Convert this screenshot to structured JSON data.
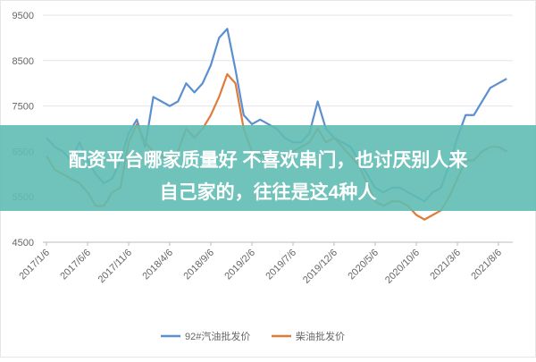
{
  "chart_data": {
    "type": "line",
    "categories": [
      "2017/1/6",
      null,
      null,
      null,
      null,
      "2017/6/6",
      null,
      null,
      null,
      null,
      "2017/11/6",
      null,
      null,
      null,
      null,
      "2018/4/6",
      null,
      null,
      null,
      null,
      "2018/9/6",
      null,
      null,
      null,
      null,
      "2019/2/6",
      null,
      null,
      null,
      null,
      "2019/7/6",
      null,
      null,
      null,
      null,
      "2019/12/6",
      null,
      null,
      null,
      null,
      "2020/5/6",
      null,
      null,
      null,
      null,
      "2020/10/6",
      null,
      null,
      null,
      null,
      "2021/3/6",
      null,
      null,
      null,
      null,
      "2021/8/6",
      null
    ],
    "series": [
      {
        "name": "92#汽油批发价",
        "color": "#5b8fd0",
        "values": [
          6800,
          6600,
          6500,
          6300,
          6700,
          6300,
          6000,
          5800,
          5900,
          6300,
          6900,
          7200,
          6600,
          7700,
          7600,
          7500,
          7600,
          8000,
          7800,
          8000,
          8400,
          9000,
          9200,
          8300,
          7300,
          7100,
          7200,
          7100,
          7000,
          6800,
          6700,
          6700,
          6900,
          7600,
          7000,
          6800,
          6700,
          6600,
          6300,
          6000,
          5700,
          5600,
          5700,
          5700,
          5600,
          5500,
          5400,
          5600,
          5700,
          6200,
          6800,
          7300,
          7300,
          7600,
          7900,
          8000,
          8100
        ]
      },
      {
        "name": "柴油批发价",
        "color": "#e07b39",
        "values": [
          6400,
          6100,
          6000,
          5900,
          5800,
          5600,
          5300,
          5300,
          5600,
          5700,
          6700,
          7100,
          6700,
          6500,
          6400,
          6300,
          6500,
          7000,
          6800,
          7000,
          7300,
          7700,
          8200,
          8000,
          7000,
          6500,
          6400,
          6400,
          6400,
          6400,
          6500,
          6600,
          6700,
          7000,
          6700,
          6800,
          6600,
          6400,
          6200,
          5800,
          5400,
          5300,
          5400,
          5400,
          5300,
          5100,
          5000,
          5100,
          5200,
          5500,
          5900,
          6300,
          6300,
          6500,
          6600,
          6600,
          6500
        ]
      }
    ],
    "ylim": [
      4500,
      9500
    ],
    "yticks": [
      4500,
      5500,
      6500,
      7500,
      8500,
      9500
    ],
    "grid": true,
    "legend": "bottom"
  },
  "banner": {
    "lines": [
      "配资平台哪家质量好 不喜欢串门，也讨厌别人来",
      "自己家的，往往是这4种人"
    ]
  }
}
